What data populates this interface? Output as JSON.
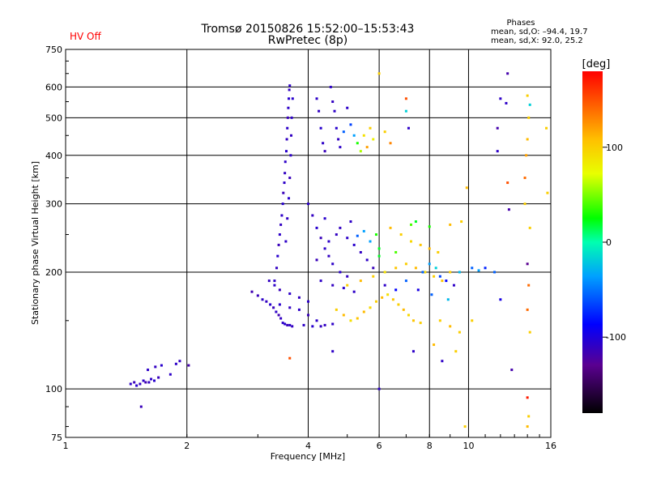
{
  "header": {
    "title_line1": "Tromsø 20150826 15:52:00–15:53:43",
    "title_line2": "RwPretec (8p)",
    "hv_status": "HV Off",
    "hv_color": "#ff0000",
    "phases_title": "Phases",
    "phases_line1": "mean, sd,O: –94.4, 19.7",
    "phases_line2": "mean, sd,X:  92.0, 25.2"
  },
  "colorbar": {
    "label": "[deg]",
    "range": [
      -180,
      180
    ],
    "ticks": [
      {
        "value": 100,
        "label": "100"
      },
      {
        "value": 0,
        "label": "0"
      },
      {
        "value": -100,
        "label": "-100"
      }
    ]
  },
  "chart_data": {
    "type": "scatter",
    "title": "Tromsø 20150826 15:52:00–15:53:43",
    "subtitle": "RwPretec (8p)",
    "xlabel": "Frequency [MHz]",
    "ylabel": "Stationary phase Virtual Height [km]",
    "x_scale": "log",
    "y_scale": "log",
    "xlim": [
      1,
      16
    ],
    "ylim": [
      75,
      750
    ],
    "x_ticks": [
      {
        "value": 1,
        "label": "1"
      },
      {
        "value": 2,
        "label": "2"
      },
      {
        "value": 4,
        "label": "4"
      },
      {
        "value": 6,
        "label": "6"
      },
      {
        "value": 8,
        "label": "8"
      },
      {
        "value": 10,
        "label": "10"
      },
      {
        "value": 16,
        "label": "16"
      }
    ],
    "y_ticks": [
      {
        "value": 75,
        "label": "75"
      },
      {
        "value": 100,
        "label": "100"
      },
      {
        "value": 200,
        "label": "200"
      },
      {
        "value": 300,
        "label": "300"
      },
      {
        "value": 400,
        "label": "400"
      },
      {
        "value": 500,
        "label": "500"
      },
      {
        "value": 600,
        "label": "600"
      },
      {
        "value": 750,
        "label": "750"
      }
    ],
    "grid": true,
    "color_by": "phase",
    "points": [
      {
        "x": 1.45,
        "y": 103,
        "phase": -110
      },
      {
        "x": 1.48,
        "y": 104,
        "phase": -115
      },
      {
        "x": 1.5,
        "y": 102,
        "phase": -108
      },
      {
        "x": 1.53,
        "y": 103,
        "phase": -112
      },
      {
        "x": 1.56,
        "y": 105,
        "phase": -110
      },
      {
        "x": 1.58,
        "y": 104,
        "phase": -118
      },
      {
        "x": 1.61,
        "y": 104,
        "phase": -112
      },
      {
        "x": 1.63,
        "y": 106,
        "phase": -110
      },
      {
        "x": 1.66,
        "y": 105,
        "phase": -108
      },
      {
        "x": 1.7,
        "y": 107,
        "phase": -115
      },
      {
        "x": 1.6,
        "y": 112,
        "phase": -110
      },
      {
        "x": 1.67,
        "y": 114,
        "phase": -112
      },
      {
        "x": 1.73,
        "y": 115,
        "phase": -108
      },
      {
        "x": 1.88,
        "y": 116,
        "phase": -110
      },
      {
        "x": 1.92,
        "y": 118,
        "phase": -112
      },
      {
        "x": 2.02,
        "y": 115,
        "phase": -120
      },
      {
        "x": 1.54,
        "y": 90,
        "phase": -115
      },
      {
        "x": 1.82,
        "y": 109,
        "phase": -110
      },
      {
        "x": 2.9,
        "y": 178,
        "phase": -118
      },
      {
        "x": 3.0,
        "y": 174,
        "phase": -115
      },
      {
        "x": 3.08,
        "y": 170,
        "phase": -110
      },
      {
        "x": 3.15,
        "y": 168,
        "phase": -112
      },
      {
        "x": 3.22,
        "y": 165,
        "phase": -108
      },
      {
        "x": 3.28,
        "y": 162,
        "phase": -115
      },
      {
        "x": 3.33,
        "y": 158,
        "phase": -110
      },
      {
        "x": 3.38,
        "y": 155,
        "phase": -118
      },
      {
        "x": 3.42,
        "y": 152,
        "phase": -112
      },
      {
        "x": 3.46,
        "y": 148,
        "phase": -110
      },
      {
        "x": 3.5,
        "y": 147,
        "phase": -108
      },
      {
        "x": 3.55,
        "y": 146,
        "phase": -115
      },
      {
        "x": 3.6,
        "y": 146,
        "phase": -110
      },
      {
        "x": 3.65,
        "y": 145,
        "phase": -112
      },
      {
        "x": 3.3,
        "y": 190,
        "phase": -110
      },
      {
        "x": 3.34,
        "y": 205,
        "phase": -112
      },
      {
        "x": 3.36,
        "y": 220,
        "phase": -108
      },
      {
        "x": 3.38,
        "y": 235,
        "phase": -115
      },
      {
        "x": 3.4,
        "y": 250,
        "phase": -110
      },
      {
        "x": 3.42,
        "y": 265,
        "phase": -112
      },
      {
        "x": 3.44,
        "y": 280,
        "phase": -110
      },
      {
        "x": 3.46,
        "y": 300,
        "phase": -108
      },
      {
        "x": 3.47,
        "y": 320,
        "phase": -115
      },
      {
        "x": 3.49,
        "y": 340,
        "phase": -110
      },
      {
        "x": 3.5,
        "y": 360,
        "phase": -112
      },
      {
        "x": 3.51,
        "y": 385,
        "phase": -110
      },
      {
        "x": 3.53,
        "y": 410,
        "phase": -108
      },
      {
        "x": 3.54,
        "y": 440,
        "phase": -112
      },
      {
        "x": 3.55,
        "y": 470,
        "phase": -110
      },
      {
        "x": 3.56,
        "y": 500,
        "phase": -115
      },
      {
        "x": 3.57,
        "y": 530,
        "phase": -110
      },
      {
        "x": 3.58,
        "y": 560,
        "phase": -108
      },
      {
        "x": 3.59,
        "y": 590,
        "phase": -112
      },
      {
        "x": 3.6,
        "y": 605,
        "phase": -110
      },
      {
        "x": 3.52,
        "y": 240,
        "phase": -110
      },
      {
        "x": 3.55,
        "y": 275,
        "phase": -112
      },
      {
        "x": 3.58,
        "y": 310,
        "phase": -108
      },
      {
        "x": 3.6,
        "y": 350,
        "phase": -115
      },
      {
        "x": 3.62,
        "y": 400,
        "phase": -110
      },
      {
        "x": 3.63,
        "y": 450,
        "phase": -112
      },
      {
        "x": 3.64,
        "y": 500,
        "phase": -110
      },
      {
        "x": 3.66,
        "y": 560,
        "phase": -108
      },
      {
        "x": 3.2,
        "y": 190,
        "phase": -112
      },
      {
        "x": 3.3,
        "y": 185,
        "phase": -110
      },
      {
        "x": 3.4,
        "y": 180,
        "phase": -115
      },
      {
        "x": 3.6,
        "y": 176,
        "phase": -110
      },
      {
        "x": 3.8,
        "y": 172,
        "phase": -112
      },
      {
        "x": 4.0,
        "y": 168,
        "phase": -110
      },
      {
        "x": 3.4,
        "y": 165,
        "phase": -108
      },
      {
        "x": 3.6,
        "y": 162,
        "phase": -112
      },
      {
        "x": 3.8,
        "y": 160,
        "phase": -110
      },
      {
        "x": 4.0,
        "y": 155,
        "phase": -115
      },
      {
        "x": 4.2,
        "y": 150,
        "phase": -110
      },
      {
        "x": 4.4,
        "y": 146,
        "phase": -112
      },
      {
        "x": 3.9,
        "y": 146,
        "phase": -110
      },
      {
        "x": 4.1,
        "y": 145,
        "phase": -108
      },
      {
        "x": 4.3,
        "y": 145,
        "phase": -112
      },
      {
        "x": 4.6,
        "y": 147,
        "phase": -110
      },
      {
        "x": 4.0,
        "y": 300,
        "phase": -110
      },
      {
        "x": 4.1,
        "y": 280,
        "phase": -112
      },
      {
        "x": 4.2,
        "y": 260,
        "phase": -108
      },
      {
        "x": 4.3,
        "y": 245,
        "phase": -115
      },
      {
        "x": 4.4,
        "y": 230,
        "phase": -110
      },
      {
        "x": 4.5,
        "y": 220,
        "phase": -112
      },
      {
        "x": 4.6,
        "y": 210,
        "phase": -110
      },
      {
        "x": 4.8,
        "y": 200,
        "phase": -108
      },
      {
        "x": 5.0,
        "y": 195,
        "phase": -112
      },
      {
        "x": 4.2,
        "y": 215,
        "phase": -115
      },
      {
        "x": 4.5,
        "y": 240,
        "phase": -110
      },
      {
        "x": 4.7,
        "y": 250,
        "phase": -112
      },
      {
        "x": 5.0,
        "y": 245,
        "phase": -110
      },
      {
        "x": 5.2,
        "y": 235,
        "phase": -108
      },
      {
        "x": 5.4,
        "y": 225,
        "phase": -112
      },
      {
        "x": 5.6,
        "y": 215,
        "phase": -110
      },
      {
        "x": 5.8,
        "y": 205,
        "phase": -115
      },
      {
        "x": 4.3,
        "y": 190,
        "phase": -110
      },
      {
        "x": 4.6,
        "y": 185,
        "phase": -112
      },
      {
        "x": 4.9,
        "y": 182,
        "phase": -108
      },
      {
        "x": 5.2,
        "y": 178,
        "phase": -110
      },
      {
        "x": 4.8,
        "y": 260,
        "phase": -112
      },
      {
        "x": 5.1,
        "y": 270,
        "phase": -110
      },
      {
        "x": 4.4,
        "y": 275,
        "phase": -108
      },
      {
        "x": 5.5,
        "y": 255,
        "phase": -40
      },
      {
        "x": 5.7,
        "y": 240,
        "phase": -40
      },
      {
        "x": 6.0,
        "y": 230,
        "phase": 20
      },
      {
        "x": 5.9,
        "y": 250,
        "phase": 30
      },
      {
        "x": 5.3,
        "y": 248,
        "phase": -60
      },
      {
        "x": 4.2,
        "y": 560,
        "phase": -110
      },
      {
        "x": 4.25,
        "y": 520,
        "phase": -112
      },
      {
        "x": 4.3,
        "y": 470,
        "phase": -108
      },
      {
        "x": 4.35,
        "y": 430,
        "phase": -110
      },
      {
        "x": 4.4,
        "y": 410,
        "phase": -115
      },
      {
        "x": 4.55,
        "y": 600,
        "phase": -110
      },
      {
        "x": 4.6,
        "y": 550,
        "phase": -112
      },
      {
        "x": 4.65,
        "y": 520,
        "phase": -110
      },
      {
        "x": 4.7,
        "y": 470,
        "phase": -108
      },
      {
        "x": 4.75,
        "y": 440,
        "phase": -112
      },
      {
        "x": 4.8,
        "y": 420,
        "phase": -110
      },
      {
        "x": 4.9,
        "y": 460,
        "phase": -60
      },
      {
        "x": 5.0,
        "y": 530,
        "phase": -110
      },
      {
        "x": 5.1,
        "y": 480,
        "phase": -70
      },
      {
        "x": 5.2,
        "y": 450,
        "phase": -40
      },
      {
        "x": 5.3,
        "y": 430,
        "phase": 30
      },
      {
        "x": 5.4,
        "y": 410,
        "phase": 60
      },
      {
        "x": 5.5,
        "y": 450,
        "phase": 90
      },
      {
        "x": 5.6,
        "y": 420,
        "phase": 120
      },
      {
        "x": 5.7,
        "y": 470,
        "phase": 100
      },
      {
        "x": 5.8,
        "y": 440,
        "phase": 80
      },
      {
        "x": 6.2,
        "y": 460,
        "phase": 100
      },
      {
        "x": 6.4,
        "y": 430,
        "phase": 130
      },
      {
        "x": 7.0,
        "y": 560,
        "phase": 150
      },
      {
        "x": 7.0,
        "y": 520,
        "phase": -20
      },
      {
        "x": 7.1,
        "y": 470,
        "phase": -110
      },
      {
        "x": 6.0,
        "y": 650,
        "phase": 100
      },
      {
        "x": 4.7,
        "y": 160,
        "phase": 100
      },
      {
        "x": 4.9,
        "y": 155,
        "phase": 110
      },
      {
        "x": 5.1,
        "y": 150,
        "phase": 90
      },
      {
        "x": 5.3,
        "y": 152,
        "phase": 105
      },
      {
        "x": 5.5,
        "y": 158,
        "phase": 110
      },
      {
        "x": 5.7,
        "y": 162,
        "phase": 95
      },
      {
        "x": 5.9,
        "y": 168,
        "phase": 100
      },
      {
        "x": 6.1,
        "y": 172,
        "phase": 110
      },
      {
        "x": 6.3,
        "y": 175,
        "phase": 90
      },
      {
        "x": 6.5,
        "y": 170,
        "phase": 105
      },
      {
        "x": 6.7,
        "y": 165,
        "phase": 100
      },
      {
        "x": 6.9,
        "y": 160,
        "phase": 110
      },
      {
        "x": 7.1,
        "y": 155,
        "phase": 95
      },
      {
        "x": 7.3,
        "y": 150,
        "phase": 105
      },
      {
        "x": 7.6,
        "y": 148,
        "phase": 100
      },
      {
        "x": 5.0,
        "y": 185,
        "phase": 100
      },
      {
        "x": 5.4,
        "y": 190,
        "phase": 110
      },
      {
        "x": 5.8,
        "y": 195,
        "phase": 100
      },
      {
        "x": 6.2,
        "y": 200,
        "phase": 90
      },
      {
        "x": 6.6,
        "y": 205,
        "phase": 105
      },
      {
        "x": 7.0,
        "y": 210,
        "phase": 100
      },
      {
        "x": 7.4,
        "y": 205,
        "phase": 110
      },
      {
        "x": 7.8,
        "y": 200,
        "phase": 95
      },
      {
        "x": 8.2,
        "y": 195,
        "phase": 100
      },
      {
        "x": 8.6,
        "y": 190,
        "phase": 105
      },
      {
        "x": 9.0,
        "y": 200,
        "phase": 100
      },
      {
        "x": 6.4,
        "y": 260,
        "phase": 110
      },
      {
        "x": 6.8,
        "y": 250,
        "phase": 100
      },
      {
        "x": 7.2,
        "y": 240,
        "phase": 95
      },
      {
        "x": 7.6,
        "y": 235,
        "phase": 105
      },
      {
        "x": 8.0,
        "y": 230,
        "phase": 110
      },
      {
        "x": 8.4,
        "y": 225,
        "phase": 100
      },
      {
        "x": 7.7,
        "y": 200,
        "phase": -60
      },
      {
        "x": 8.0,
        "y": 210,
        "phase": -40
      },
      {
        "x": 8.3,
        "y": 205,
        "phase": -20
      },
      {
        "x": 8.5,
        "y": 195,
        "phase": -70
      },
      {
        "x": 8.8,
        "y": 190,
        "phase": -90
      },
      {
        "x": 9.2,
        "y": 185,
        "phase": -110
      },
      {
        "x": 9.5,
        "y": 200,
        "phase": -30
      },
      {
        "x": 10.2,
        "y": 205,
        "phase": -60
      },
      {
        "x": 10.6,
        "y": 202,
        "phase": -40
      },
      {
        "x": 7.5,
        "y": 180,
        "phase": -100
      },
      {
        "x": 8.1,
        "y": 175,
        "phase": -60
      },
      {
        "x": 8.9,
        "y": 170,
        "phase": -30
      },
      {
        "x": 6.2,
        "y": 185,
        "phase": -110
      },
      {
        "x": 6.6,
        "y": 180,
        "phase": -90
      },
      {
        "x": 7.0,
        "y": 190,
        "phase": -60
      },
      {
        "x": 6.0,
        "y": 220,
        "phase": 20
      },
      {
        "x": 6.6,
        "y": 225,
        "phase": 40
      },
      {
        "x": 7.2,
        "y": 265,
        "phase": 40
      },
      {
        "x": 7.4,
        "y": 270,
        "phase": 20
      },
      {
        "x": 8.0,
        "y": 262,
        "phase": 30
      },
      {
        "x": 8.5,
        "y": 150,
        "phase": 100
      },
      {
        "x": 9.0,
        "y": 145,
        "phase": 110
      },
      {
        "x": 9.5,
        "y": 140,
        "phase": 100
      },
      {
        "x": 8.2,
        "y": 130,
        "phase": 110
      },
      {
        "x": 9.3,
        "y": 125,
        "phase": 100
      },
      {
        "x": 7.3,
        "y": 125,
        "phase": -110
      },
      {
        "x": 8.6,
        "y": 118,
        "phase": -110
      },
      {
        "x": 9.0,
        "y": 265,
        "phase": 110
      },
      {
        "x": 9.6,
        "y": 270,
        "phase": 100
      },
      {
        "x": 9.9,
        "y": 330,
        "phase": 110
      },
      {
        "x": 9.8,
        "y": 80,
        "phase": 100
      },
      {
        "x": 6.0,
        "y": 100,
        "phase": -110
      },
      {
        "x": 4.6,
        "y": 125,
        "phase": -110
      },
      {
        "x": 3.6,
        "y": 120,
        "phase": 150
      },
      {
        "x": 12.5,
        "y": 650,
        "phase": -120
      },
      {
        "x": 12.0,
        "y": 560,
        "phase": -110
      },
      {
        "x": 12.4,
        "y": 545,
        "phase": -110
      },
      {
        "x": 11.8,
        "y": 470,
        "phase": -120
      },
      {
        "x": 11.8,
        "y": 410,
        "phase": -110
      },
      {
        "x": 12.5,
        "y": 340,
        "phase": 150
      },
      {
        "x": 12.6,
        "y": 290,
        "phase": -120
      },
      {
        "x": 13.8,
        "y": 350,
        "phase": 140
      },
      {
        "x": 14.0,
        "y": 570,
        "phase": 100
      },
      {
        "x": 14.2,
        "y": 540,
        "phase": -20
      },
      {
        "x": 14.1,
        "y": 500,
        "phase": 100
      },
      {
        "x": 14.0,
        "y": 440,
        "phase": 110
      },
      {
        "x": 13.9,
        "y": 400,
        "phase": 120
      },
      {
        "x": 13.8,
        "y": 300,
        "phase": 100
      },
      {
        "x": 14.2,
        "y": 260,
        "phase": 100
      },
      {
        "x": 14.0,
        "y": 210,
        "phase": -130
      },
      {
        "x": 14.1,
        "y": 185,
        "phase": 140
      },
      {
        "x": 14.0,
        "y": 160,
        "phase": 140
      },
      {
        "x": 14.2,
        "y": 140,
        "phase": 100
      },
      {
        "x": 12.8,
        "y": 112,
        "phase": -120
      },
      {
        "x": 14.0,
        "y": 95,
        "phase": 170
      },
      {
        "x": 14.1,
        "y": 85,
        "phase": 100
      },
      {
        "x": 14.0,
        "y": 80,
        "phase": 110
      },
      {
        "x": 15.7,
        "y": 320,
        "phase": 100
      },
      {
        "x": 15.6,
        "y": 470,
        "phase": 100
      },
      {
        "x": 11.6,
        "y": 200,
        "phase": -60
      },
      {
        "x": 11.0,
        "y": 205,
        "phase": -80
      },
      {
        "x": 12.0,
        "y": 170,
        "phase": -100
      },
      {
        "x": 10.2,
        "y": 150,
        "phase": 100
      }
    ]
  }
}
